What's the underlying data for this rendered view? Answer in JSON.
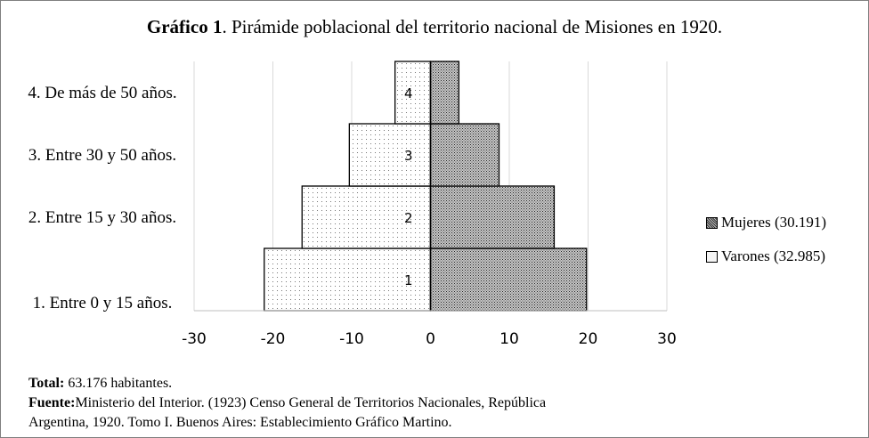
{
  "title": {
    "bold": "Gráfico 1",
    "rest": ". Pirámide poblacional del territorio nacional de Misiones en 1920."
  },
  "chart_data": {
    "type": "bar",
    "orientation": "horizontal",
    "stacked": "population-pyramid",
    "categories": [
      "1. Entre 0 y 15 años.",
      "2. Entre 15 y 30 años.",
      "3. Entre 30 y 50 años.",
      "4. De más de 50 años."
    ],
    "bar_labels": [
      "1",
      "2",
      "3",
      "4"
    ],
    "series": [
      {
        "name": "Mujeres (30.191)",
        "values": [
          19.8,
          15.7,
          8.7,
          3.6
        ]
      },
      {
        "name": "Varones (32.985)",
        "values": [
          -21.1,
          -16.3,
          -10.3,
          -4.5
        ]
      }
    ],
    "xlim": [
      -30,
      30
    ],
    "xticks": [
      -30,
      -20,
      -10,
      0,
      10,
      20,
      30
    ],
    "grid": true,
    "legend_position": "right"
  },
  "notes": {
    "total_label": "Total:",
    "total_text": " 63.176 habitantes.",
    "source_label": "Fuente:",
    "source_line1": "Ministerio del Interior. (1923) Censo General de Territorios Nacionales, República",
    "source_line2": "Argentina, 1920. Tomo I. Buenos Aires: Establecimiento Gráfico Martino."
  }
}
